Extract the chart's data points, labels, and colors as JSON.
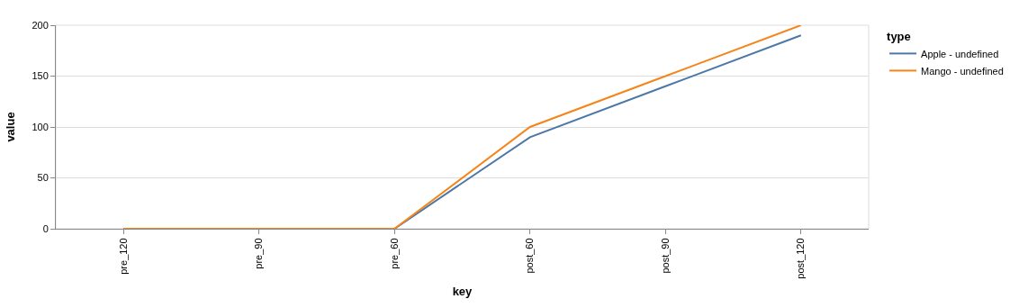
{
  "chart_data": {
    "type": "line",
    "xlabel": "key",
    "ylabel": "value",
    "legend_title": "type",
    "categories": [
      "pre_120",
      "pre_90",
      "pre_60",
      "post_60",
      "post_90",
      "post_120"
    ],
    "series": [
      {
        "name": "Apple - undefined",
        "color": "#4c78a8",
        "values": [
          0,
          0,
          0,
          90,
          140,
          190
        ]
      },
      {
        "name": "Mango - undefined",
        "color": "#f58518",
        "values": [
          0,
          0,
          0,
          100,
          150,
          200
        ]
      }
    ],
    "ylim": [
      0,
      200
    ],
    "yticks": [
      0,
      50,
      100,
      150,
      200
    ],
    "grid": "y",
    "legend": "top right",
    "marker": "none",
    "line_style": "solid"
  }
}
